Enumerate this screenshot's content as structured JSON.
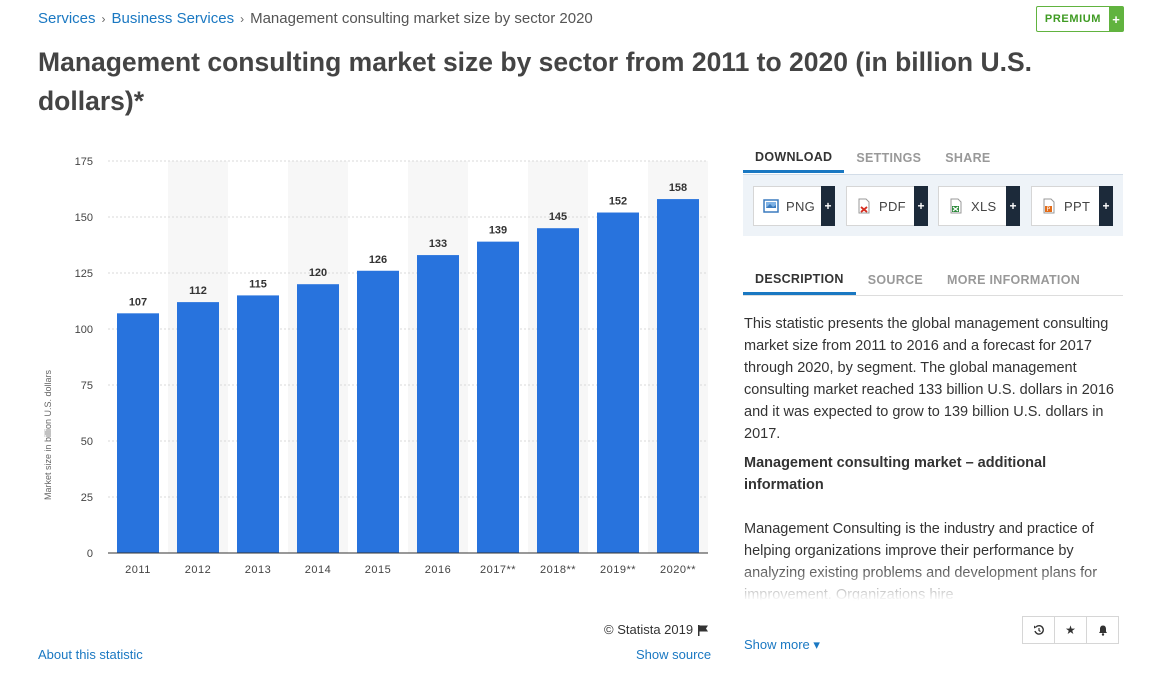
{
  "breadcrumb": {
    "items": [
      "Services",
      "Business Services"
    ],
    "current": "Management consulting market size by sector 2020"
  },
  "premium": {
    "label": "PREMIUM",
    "plus": "+"
  },
  "title": "Management consulting market size by sector from 2011 to 2020 (in billion U.S. dollars)*",
  "chart_data": {
    "type": "bar",
    "categories": [
      "2011",
      "2012",
      "2013",
      "2014",
      "2015",
      "2016",
      "2017**",
      "2018**",
      "2019**",
      "2020**"
    ],
    "values": [
      107,
      112,
      115,
      120,
      126,
      133,
      139,
      145,
      152,
      158
    ],
    "ylabel": "Market size in billion U.S. dollars",
    "xlabel": "",
    "ylim": [
      0,
      175
    ],
    "yticks": [
      0,
      25,
      50,
      75,
      100,
      125,
      150,
      175
    ],
    "data_labels": true,
    "grid": true,
    "bar_color": "#2873dd"
  },
  "chart_footer": {
    "copyright": "© Statista 2019",
    "about": "About this statistic",
    "show_source": "Show source"
  },
  "download_tabs": [
    "DOWNLOAD",
    "SETTINGS",
    "SHARE"
  ],
  "download_buttons": [
    {
      "label": "PNG",
      "icon": "png-file-icon",
      "color": "#3b7bbf"
    },
    {
      "label": "PDF",
      "icon": "pdf-file-icon",
      "color": "#d62d20"
    },
    {
      "label": "XLS",
      "icon": "xls-file-icon",
      "color": "#2e8b3c"
    },
    {
      "label": "PPT",
      "icon": "ppt-file-icon",
      "color": "#e36c19"
    }
  ],
  "info_tabs": [
    "DESCRIPTION",
    "SOURCE",
    "MORE INFORMATION"
  ],
  "description": {
    "p1": "This statistic presents the global management consulting market size from 2011 to 2016 and a forecast for 2017 through 2020, by segment. The global management consulting market reached 133 billion U.S. dollars in 2016 and it was expected to grow to 139 billion U.S. dollars in 2017.",
    "heading": "Management consulting market – additional information",
    "p2": "Management Consulting is the industry and practice of helping organizations improve their performance by analyzing existing problems and development plans for improvement. Organizations hire"
  },
  "show_more": "Show more ▾",
  "accent": "#1a78c2"
}
